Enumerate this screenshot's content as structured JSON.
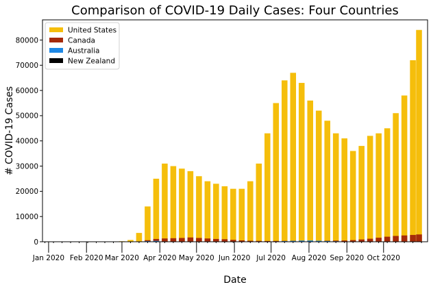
{
  "chart_data": {
    "type": "bar",
    "title": "Comparison of COVID-19 Daily Cases: Four Countries",
    "xlabel": "Date",
    "ylabel": "# COVID-19 Cases",
    "ylim": [
      0,
      88000
    ],
    "y_ticks": [
      0,
      10000,
      20000,
      30000,
      40000,
      50000,
      60000,
      70000,
      80000
    ],
    "x_start": "2019-12-27",
    "x_end": "2020-11-06",
    "x_ticks": [
      {
        "label": "Jan 2020",
        "date": "2020-01-01"
      },
      {
        "label": "Feb 2020",
        "date": "2020-02-01"
      },
      {
        "label": "Mar 2020",
        "date": "2020-03-01"
      },
      {
        "label": "Apr 2020",
        "date": "2020-04-01"
      },
      {
        "label": "May 2020",
        "date": "2020-05-01"
      },
      {
        "label": "Jun 2020",
        "date": "2020-06-01"
      },
      {
        "label": "Jul 2020",
        "date": "2020-07-01"
      },
      {
        "label": "Aug 2020",
        "date": "2020-08-01"
      },
      {
        "label": "Sep 2020",
        "date": "2020-09-01"
      },
      {
        "label": "Oct 2020",
        "date": "2020-10-01"
      }
    ],
    "legend_position": "top-left",
    "grid": false,
    "series": [
      {
        "name": "United States",
        "color": "#F5BE0B",
        "points": [
          {
            "date": "2020-03-01",
            "value": 200
          },
          {
            "date": "2020-03-08",
            "value": 700
          },
          {
            "date": "2020-03-15",
            "value": 3500
          },
          {
            "date": "2020-03-22",
            "value": 14000
          },
          {
            "date": "2020-03-29",
            "value": 25000
          },
          {
            "date": "2020-04-05",
            "value": 31000
          },
          {
            "date": "2020-04-12",
            "value": 30000
          },
          {
            "date": "2020-04-19",
            "value": 29000
          },
          {
            "date": "2020-04-26",
            "value": 28000
          },
          {
            "date": "2020-05-03",
            "value": 26000
          },
          {
            "date": "2020-05-10",
            "value": 24000
          },
          {
            "date": "2020-05-17",
            "value": 23000
          },
          {
            "date": "2020-05-24",
            "value": 22000
          },
          {
            "date": "2020-05-31",
            "value": 21000
          },
          {
            "date": "2020-06-07",
            "value": 21000
          },
          {
            "date": "2020-06-14",
            "value": 24000
          },
          {
            "date": "2020-06-21",
            "value": 31000
          },
          {
            "date": "2020-06-28",
            "value": 43000
          },
          {
            "date": "2020-07-05",
            "value": 55000
          },
          {
            "date": "2020-07-12",
            "value": 64000
          },
          {
            "date": "2020-07-19",
            "value": 67000
          },
          {
            "date": "2020-07-26",
            "value": 63000
          },
          {
            "date": "2020-08-02",
            "value": 56000
          },
          {
            "date": "2020-08-09",
            "value": 52000
          },
          {
            "date": "2020-08-16",
            "value": 48000
          },
          {
            "date": "2020-08-23",
            "value": 43000
          },
          {
            "date": "2020-08-30",
            "value": 41000
          },
          {
            "date": "2020-09-06",
            "value": 36000
          },
          {
            "date": "2020-09-13",
            "value": 38000
          },
          {
            "date": "2020-09-20",
            "value": 42000
          },
          {
            "date": "2020-09-27",
            "value": 43000
          },
          {
            "date": "2020-10-04",
            "value": 45000
          },
          {
            "date": "2020-10-11",
            "value": 51000
          },
          {
            "date": "2020-10-18",
            "value": 58000
          },
          {
            "date": "2020-10-25",
            "value": 72000
          },
          {
            "date": "2020-10-30",
            "value": 84000
          }
        ]
      },
      {
        "name": "Canada",
        "color": "#A52A0A",
        "points": [
          {
            "date": "2020-03-08",
            "value": 30
          },
          {
            "date": "2020-03-15",
            "value": 150
          },
          {
            "date": "2020-03-22",
            "value": 600
          },
          {
            "date": "2020-03-29",
            "value": 1100
          },
          {
            "date": "2020-04-05",
            "value": 1300
          },
          {
            "date": "2020-04-12",
            "value": 1400
          },
          {
            "date": "2020-04-19",
            "value": 1500
          },
          {
            "date": "2020-04-26",
            "value": 1700
          },
          {
            "date": "2020-05-03",
            "value": 1500
          },
          {
            "date": "2020-05-10",
            "value": 1300
          },
          {
            "date": "2020-05-17",
            "value": 1100
          },
          {
            "date": "2020-05-24",
            "value": 1000
          },
          {
            "date": "2020-05-31",
            "value": 750
          },
          {
            "date": "2020-06-07",
            "value": 550
          },
          {
            "date": "2020-06-14",
            "value": 400
          },
          {
            "date": "2020-06-21",
            "value": 350
          },
          {
            "date": "2020-06-28",
            "value": 300
          },
          {
            "date": "2020-07-05",
            "value": 320
          },
          {
            "date": "2020-07-12",
            "value": 350
          },
          {
            "date": "2020-07-19",
            "value": 400
          },
          {
            "date": "2020-07-26",
            "value": 450
          },
          {
            "date": "2020-08-02",
            "value": 400
          },
          {
            "date": "2020-08-09",
            "value": 380
          },
          {
            "date": "2020-08-16",
            "value": 400
          },
          {
            "date": "2020-08-23",
            "value": 450
          },
          {
            "date": "2020-08-30",
            "value": 500
          },
          {
            "date": "2020-09-06",
            "value": 650
          },
          {
            "date": "2020-09-13",
            "value": 900
          },
          {
            "date": "2020-09-20",
            "value": 1200
          },
          {
            "date": "2020-09-27",
            "value": 1600
          },
          {
            "date": "2020-10-04",
            "value": 2000
          },
          {
            "date": "2020-10-11",
            "value": 2300
          },
          {
            "date": "2020-10-18",
            "value": 2500
          },
          {
            "date": "2020-10-25",
            "value": 2700
          },
          {
            "date": "2020-10-30",
            "value": 2900
          }
        ]
      },
      {
        "name": "Australia",
        "color": "#1E88E5",
        "points": [
          {
            "date": "2020-03-15",
            "value": 40
          },
          {
            "date": "2020-03-22",
            "value": 250
          },
          {
            "date": "2020-03-29",
            "value": 350
          },
          {
            "date": "2020-04-05",
            "value": 150
          },
          {
            "date": "2020-04-12",
            "value": 50
          },
          {
            "date": "2020-04-26",
            "value": 20
          },
          {
            "date": "2020-06-21",
            "value": 20
          },
          {
            "date": "2020-06-28",
            "value": 60
          },
          {
            "date": "2020-07-05",
            "value": 150
          },
          {
            "date": "2020-07-12",
            "value": 250
          },
          {
            "date": "2020-07-19",
            "value": 350
          },
          {
            "date": "2020-07-26",
            "value": 450
          },
          {
            "date": "2020-08-02",
            "value": 500
          },
          {
            "date": "2020-08-09",
            "value": 400
          },
          {
            "date": "2020-08-16",
            "value": 300
          },
          {
            "date": "2020-08-23",
            "value": 200
          },
          {
            "date": "2020-08-30",
            "value": 120
          },
          {
            "date": "2020-09-06",
            "value": 60
          },
          {
            "date": "2020-09-13",
            "value": 40
          },
          {
            "date": "2020-09-20",
            "value": 20
          }
        ]
      },
      {
        "name": "New Zealand",
        "color": "#000000",
        "points": [
          {
            "date": "2020-03-22",
            "value": 60
          },
          {
            "date": "2020-03-29",
            "value": 80
          },
          {
            "date": "2020-04-05",
            "value": 50
          },
          {
            "date": "2020-04-12",
            "value": 20
          },
          {
            "date": "2020-08-16",
            "value": 10
          }
        ]
      }
    ]
  }
}
